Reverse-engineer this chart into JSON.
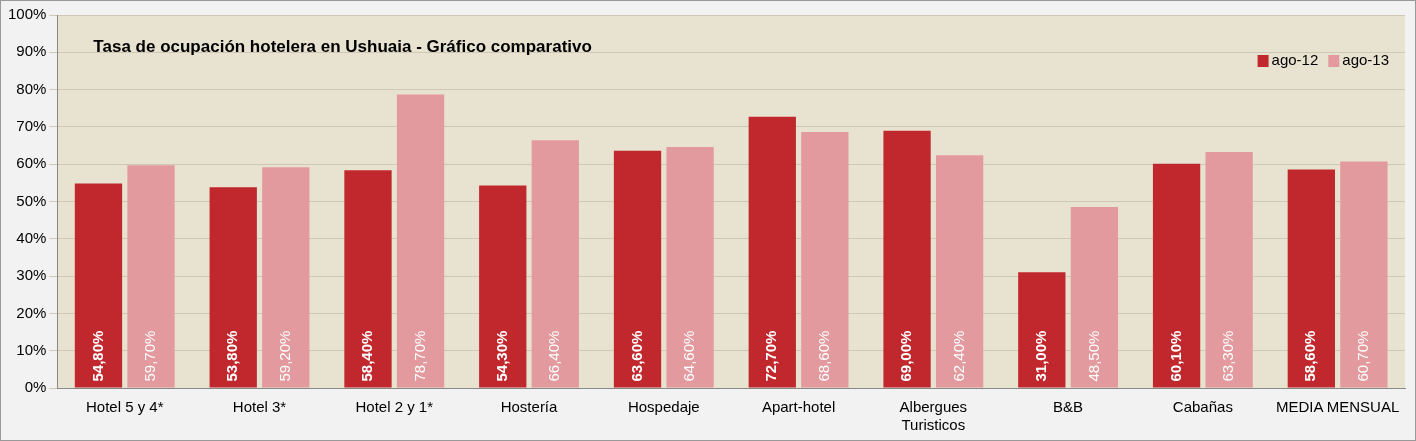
{
  "chart_data": {
    "type": "bar",
    "title": "Tasa de ocupación hotelera en Ushuaia - Gráfico comparativo",
    "categories": [
      "Hotel 5 y 4*",
      "Hotel 3*",
      "Hotel 2 y 1*",
      "Hostería",
      "Hospedaje",
      "Apart-hotel",
      "Albergues Turisticos",
      "B&B",
      "Cabañas",
      "MEDIA MENSUAL"
    ],
    "series": [
      {
        "name": "ago-12",
        "color": "#c0282d",
        "values": [
          54.8,
          53.8,
          58.4,
          54.3,
          63.6,
          72.7,
          69.0,
          31.0,
          60.1,
          58.6
        ],
        "value_labels": [
          "54,80%",
          "53,80%",
          "58,40%",
          "54,30%",
          "63,60%",
          "72,70%",
          "69,00%",
          "31,00%",
          "60,10%",
          "58,60%"
        ]
      },
      {
        "name": "ago-13",
        "color": "#e39a9e",
        "values": [
          59.7,
          59.2,
          78.7,
          66.4,
          64.6,
          68.6,
          62.4,
          48.5,
          63.3,
          60.7
        ],
        "value_labels": [
          "59,70%",
          "59,20%",
          "78,70%",
          "66,40%",
          "64,60%",
          "68,60%",
          "62,40%",
          "48,50%",
          "63,30%",
          "60,70%"
        ]
      }
    ],
    "ylim": [
      0,
      100
    ],
    "yticks": [
      {
        "value": 0,
        "label": "0%"
      },
      {
        "value": 10,
        "label": "10%"
      },
      {
        "value": 20,
        "label": "20%"
      },
      {
        "value": 30,
        "label": "30%"
      },
      {
        "value": 40,
        "label": "40%"
      },
      {
        "value": 50,
        "label": "50%"
      },
      {
        "value": 60,
        "label": "60%"
      },
      {
        "value": 70,
        "label": "70%"
      },
      {
        "value": 80,
        "label": "80%"
      },
      {
        "value": 90,
        "label": "90%"
      },
      {
        "value": 100,
        "label": "100%"
      }
    ],
    "grid": "y",
    "legend": "top right"
  }
}
